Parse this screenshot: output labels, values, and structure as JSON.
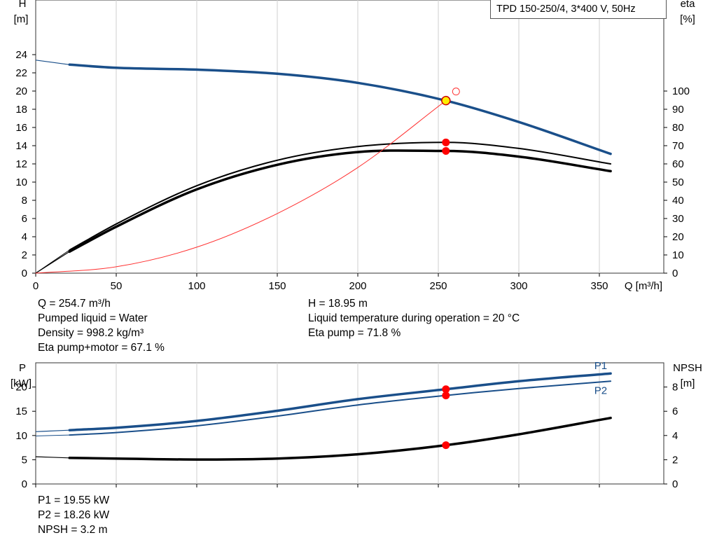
{
  "chart_data": [
    {
      "type": "line",
      "title": "TPD 150-250/4, 3*400 V, 50Hz",
      "x_axis": {
        "label": "Q [m³/h]",
        "range": [
          0,
          390
        ],
        "ticks": [
          0,
          50,
          100,
          150,
          200,
          250,
          300,
          350
        ]
      },
      "y_left": {
        "label_top": "H",
        "label_unit": "[m]",
        "range": [
          0,
          30
        ],
        "ticks": [
          0,
          2,
          4,
          6,
          8,
          10,
          12,
          14,
          16,
          18,
          20,
          22,
          24
        ]
      },
      "y_right": {
        "label_top": "eta",
        "label_unit": "[%]",
        "range": [
          0,
          150
        ],
        "ticks": [
          0,
          10,
          20,
          30,
          40,
          50,
          60,
          70,
          80,
          90,
          100
        ]
      },
      "grid": true,
      "series": [
        {
          "key": "H",
          "color": "#1a4f8a",
          "axis": "left",
          "x": [
            21,
            50,
            100,
            150,
            200,
            254.7,
            300,
            357
          ],
          "y": [
            22.9,
            22.55,
            22.35,
            21.9,
            20.9,
            18.95,
            16.6,
            13.1
          ],
          "ext_x": [
            0,
            21
          ],
          "ext_y": [
            23.4,
            22.9
          ]
        },
        {
          "key": "eta_pump",
          "color": "#000000",
          "axis": "right",
          "x": [
            21,
            50,
            100,
            150,
            200,
            254.7,
            300,
            357
          ],
          "y": [
            12.7,
            27,
            48,
            62,
            69.5,
            71.8,
            68.5,
            60
          ],
          "ext_x": [
            0,
            21
          ],
          "ext_y": [
            0,
            12.7
          ]
        },
        {
          "key": "eta_total",
          "color": "#000000",
          "axis": "right",
          "x": [
            21,
            50,
            100,
            150,
            200,
            254.7,
            300,
            357
          ],
          "y": [
            11.8,
            25.5,
            46,
            59.5,
            66.5,
            67.1,
            64,
            56
          ],
          "ext_x": [
            0,
            21
          ],
          "ext_y": [
            0,
            11.8
          ]
        },
        {
          "key": "system",
          "color": "#ff3030",
          "axis": "left",
          "x": [
            0,
            50,
            100,
            150,
            200,
            254.7
          ],
          "y": [
            0,
            0.7,
            2.85,
            6.55,
            11.6,
            18.95
          ]
        }
      ],
      "operating_point": {
        "q": 254.7,
        "h": 18.95,
        "eta_pump": 71.8,
        "eta_total": 67.1
      },
      "secondary_point": {
        "q": 261,
        "h": 19.95
      }
    },
    {
      "type": "line",
      "x_axis": {
        "range": [
          0,
          390
        ],
        "ticks": [
          0,
          50,
          100,
          150,
          200,
          250,
          300,
          350
        ]
      },
      "y_left": {
        "label_top": "P",
        "label_unit": "[kW]",
        "range": [
          0,
          25
        ],
        "ticks": [
          0,
          5,
          10,
          15,
          20
        ]
      },
      "y_right": {
        "label_top": "NPSH",
        "label_unit": "[m]",
        "range": [
          0,
          10
        ],
        "ticks": [
          0,
          2,
          4,
          6,
          8
        ]
      },
      "grid": true,
      "series": [
        {
          "key": "P1",
          "name": "P1",
          "color": "#1a4f8a",
          "axis": "left",
          "x": [
            21,
            50,
            100,
            150,
            200,
            254.7,
            300,
            357
          ],
          "y": [
            11.1,
            11.6,
            13.0,
            15.1,
            17.5,
            19.55,
            21.2,
            22.8
          ],
          "ext_x": [
            0,
            21
          ],
          "ext_y": [
            10.8,
            11.1
          ]
        },
        {
          "key": "P2",
          "name": "P2",
          "color": "#1a4f8a",
          "axis": "left",
          "x": [
            21,
            50,
            100,
            150,
            200,
            254.7,
            300,
            357
          ],
          "y": [
            10.1,
            10.6,
            12.0,
            14.0,
            16.3,
            18.26,
            19.7,
            21.2
          ],
          "ext_x": [
            0,
            21
          ],
          "ext_y": [
            9.9,
            10.1
          ]
        },
        {
          "key": "NPSH",
          "color": "#000000",
          "axis": "right",
          "x": [
            21,
            50,
            100,
            150,
            200,
            254.7,
            300,
            357
          ],
          "y": [
            2.15,
            2.1,
            2.02,
            2.1,
            2.45,
            3.2,
            4.1,
            5.45
          ],
          "ext_x": [
            0,
            21
          ],
          "ext_y": [
            2.25,
            2.15
          ]
        }
      ],
      "operating_point": {
        "q": 254.7,
        "p1": 19.55,
        "p2": 18.26,
        "npsh": 3.2
      }
    }
  ],
  "info_top": {
    "q": "Q = 254.7 m³/h",
    "liquid": "Pumped liquid = Water",
    "density": "Density = 998.2 kg/m³",
    "eta_total": "Eta pump+motor = 67.1 %",
    "h": "H = 18.95 m",
    "temp": "Liquid temperature during operation = 20 °C",
    "eta_pump": "Eta pump = 71.8 %"
  },
  "info_bottom": {
    "p1": "P1 = 19.55 kW",
    "p2": "P2 = 18.26 kW",
    "npsh": "NPSH = 3.2 m"
  }
}
